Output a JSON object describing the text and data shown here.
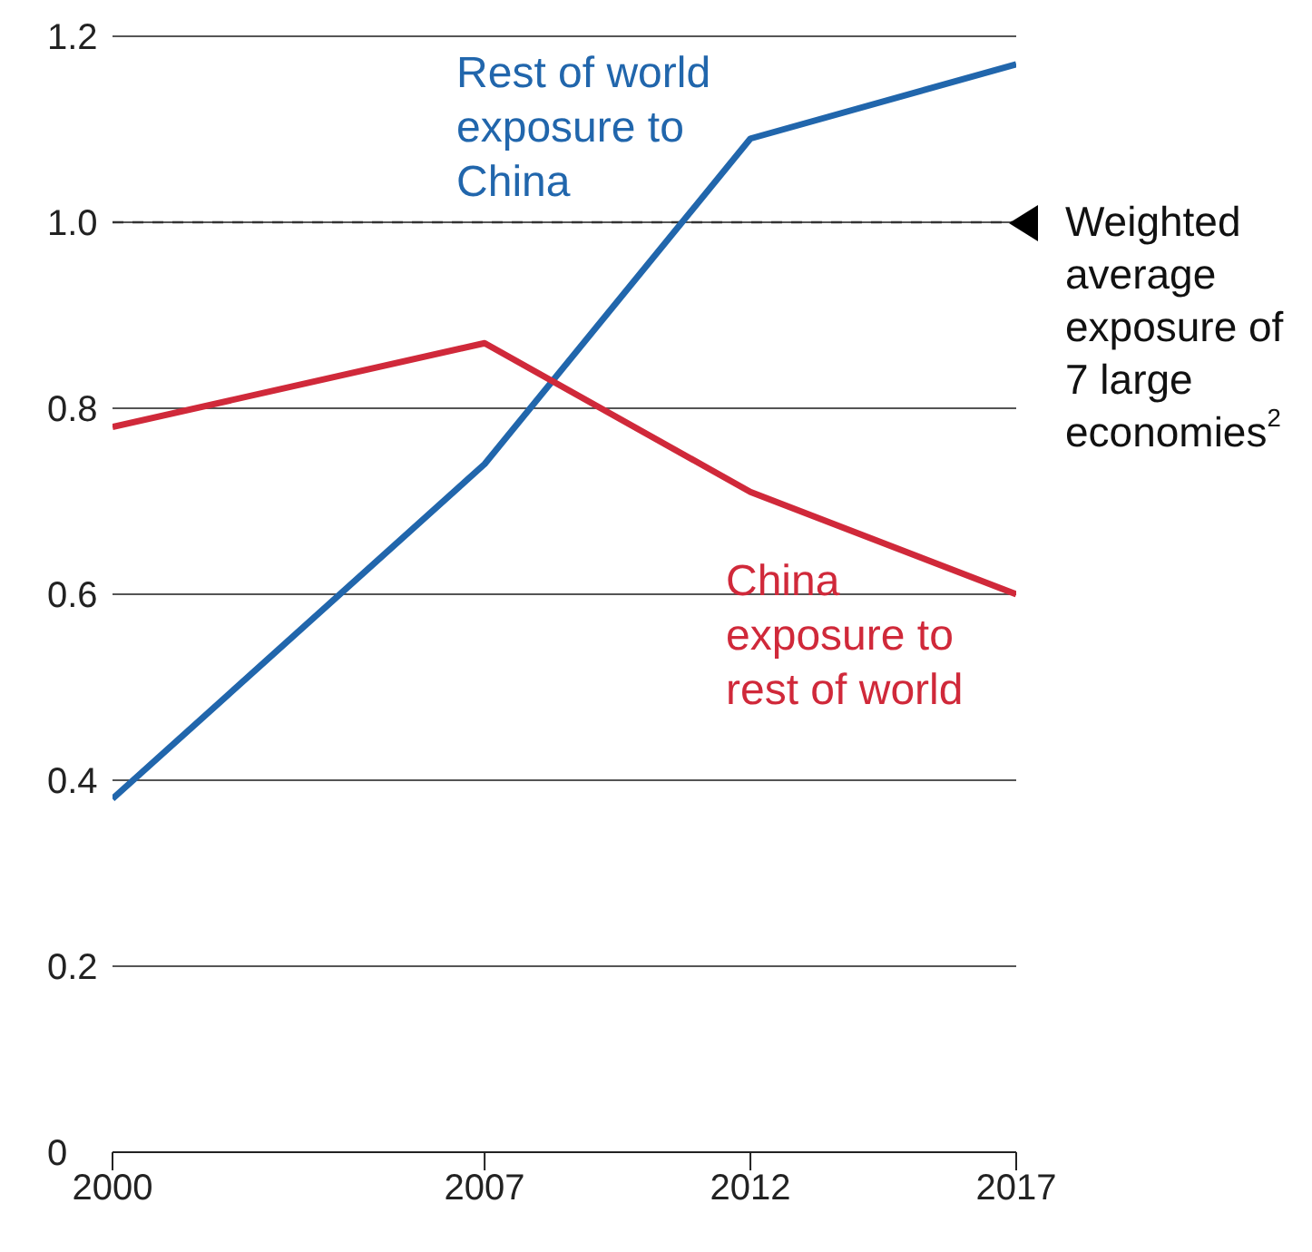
{
  "chart_data": {
    "type": "line",
    "x": [
      2000,
      2007,
      2012,
      2017
    ],
    "series": [
      {
        "name": "Rest of world exposure to China",
        "color": "#2166ac",
        "values": [
          0.38,
          0.74,
          1.09,
          1.17
        ]
      },
      {
        "name": "China exposure to rest of world",
        "color": "#d0293a",
        "values": [
          0.78,
          0.87,
          0.71,
          0.6
        ]
      }
    ],
    "xlim": [
      2000,
      2017
    ],
    "xticks": [
      2000,
      2007,
      2012,
      2017
    ],
    "ylim": [
      0,
      1.2
    ],
    "yticks": [
      0,
      0.2,
      0.4,
      0.6,
      0.8,
      {
        "value": 1,
        "label": "1.0"
      },
      1.2
    ],
    "ref_lines": [
      {
        "axis": "y",
        "value": 1,
        "label": "Weighted average exposure of 7 large economies$^{2}$",
        "color": "#333333",
        "line_style": "dashed"
      }
    ],
    "grid": "y",
    "legend": false,
    "marker": "none",
    "line_style": "solid"
  }
}
